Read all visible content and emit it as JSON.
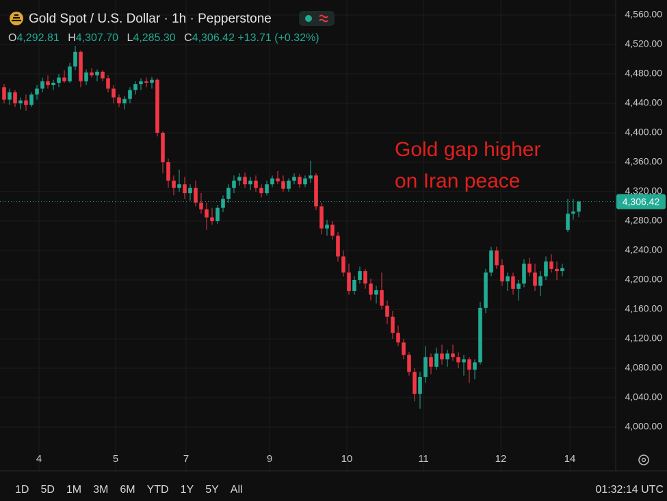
{
  "header": {
    "symbol": "Gold Spot / U.S. Dollar · 1h · Pepperstone",
    "ohlc_labels": [
      "O",
      "H",
      "L",
      "C"
    ],
    "ohlc_values": [
      "4,292.81",
      "4,307.70",
      "4,285.30",
      "4,306.42"
    ],
    "change": "+13.71 (+0.32%)"
  },
  "toolbar": {
    "ranges": [
      "1D",
      "5D",
      "1M",
      "3M",
      "6M",
      "YTD",
      "1Y",
      "5Y",
      "All"
    ],
    "time": "01:32:14 UTC"
  },
  "chart_data": {
    "type": "candlestick",
    "annotation": [
      "Gold gap higher",
      "on Iran peace"
    ],
    "up_color": "#22ab94",
    "down_color": "#f23645",
    "grid": true,
    "price_line": {
      "value": 4306.42,
      "label": "4,306.42"
    },
    "xlim": [
      -0.75,
      111.75
    ],
    "xticks": [
      {
        "value": 6.375,
        "label": "4"
      },
      {
        "value": 20.375,
        "label": "5"
      },
      {
        "value": 33.25,
        "label": "7"
      },
      {
        "value": 48.5,
        "label": "9"
      },
      {
        "value": 62.625,
        "label": "10"
      },
      {
        "value": 76.625,
        "label": "11"
      },
      {
        "value": 90.75,
        "label": "12"
      },
      {
        "value": 103.375,
        "label": "14"
      }
    ],
    "ylim": [
      3979.53,
      4580.47
    ],
    "yticks": [
      {
        "value": 4000,
        "label": "4,000.00"
      },
      {
        "value": 4040,
        "label": "4,040.00"
      },
      {
        "value": 4080,
        "label": "4,080.00"
      },
      {
        "value": 4120,
        "label": "4,120.00"
      },
      {
        "value": 4160,
        "label": "4,160.00"
      },
      {
        "value": 4200,
        "label": "4,200.00"
      },
      {
        "value": 4240,
        "label": "4,240.00"
      },
      {
        "value": 4280,
        "label": "4,280.00"
      },
      {
        "value": 4320,
        "label": "4,320.00"
      },
      {
        "value": 4360,
        "label": "4,360.00"
      },
      {
        "value": 4400,
        "label": "4,400.00"
      },
      {
        "value": 4440,
        "label": "4,440.00"
      },
      {
        "value": 4480,
        "label": "4,480.00"
      },
      {
        "value": 4520,
        "label": "4,520.00"
      },
      {
        "value": 4560,
        "label": "4,560.00"
      }
    ],
    "ohlc": [
      [
        4462,
        4466,
        4440,
        4445
      ],
      [
        4445,
        4460,
        4438,
        4455
      ],
      [
        4455,
        4458,
        4435,
        4440
      ],
      [
        4440,
        4448,
        4432,
        4444
      ],
      [
        4444,
        4452,
        4430,
        4438
      ],
      [
        4438,
        4455,
        4435,
        4452
      ],
      [
        4452,
        4465,
        4445,
        4460
      ],
      [
        4460,
        4475,
        4455,
        4470
      ],
      [
        4470,
        4478,
        4460,
        4465
      ],
      [
        4465,
        4472,
        4458,
        4468
      ],
      [
        4468,
        4480,
        4462,
        4475
      ],
      [
        4475,
        4485,
        4468,
        4470
      ],
      [
        4470,
        4495,
        4468,
        4490
      ],
      [
        4490,
        4518,
        4485,
        4510
      ],
      [
        4510,
        4512,
        4462,
        4470
      ],
      [
        4470,
        4486,
        4465,
        4482
      ],
      [
        4482,
        4488,
        4475,
        4478
      ],
      [
        4478,
        4486,
        4470,
        4483
      ],
      [
        4483,
        4485,
        4470,
        4474
      ],
      [
        4474,
        4478,
        4455,
        4460
      ],
      [
        4460,
        4465,
        4440,
        4448
      ],
      [
        4448,
        4452,
        4435,
        4440
      ],
      [
        4440,
        4450,
        4432,
        4446
      ],
      [
        4446,
        4462,
        4440,
        4458
      ],
      [
        4458,
        4470,
        4452,
        4466
      ],
      [
        4466,
        4474,
        4458,
        4470
      ],
      [
        4470,
        4475,
        4462,
        4468
      ],
      [
        4468,
        4476,
        4460,
        4472
      ],
      [
        4472,
        4474,
        4395,
        4400
      ],
      [
        4400,
        4402,
        4345,
        4360
      ],
      [
        4360,
        4365,
        4325,
        4335
      ],
      [
        4335,
        4342,
        4315,
        4325
      ],
      [
        4325,
        4350,
        4320,
        4330
      ],
      [
        4330,
        4340,
        4310,
        4318
      ],
      [
        4318,
        4330,
        4308,
        4325
      ],
      [
        4325,
        4335,
        4300,
        4305
      ],
      [
        4305,
        4318,
        4290,
        4296
      ],
      [
        4296,
        4305,
        4268,
        4285
      ],
      [
        4285,
        4298,
        4275,
        4280
      ],
      [
        4280,
        4302,
        4276,
        4298
      ],
      [
        4298,
        4315,
        4292,
        4310
      ],
      [
        4310,
        4330,
        4305,
        4325
      ],
      [
        4325,
        4342,
        4318,
        4335
      ],
      [
        4335,
        4345,
        4328,
        4340
      ],
      [
        4340,
        4346,
        4325,
        4330
      ],
      [
        4330,
        4340,
        4322,
        4335
      ],
      [
        4335,
        4342,
        4320,
        4325
      ],
      [
        4325,
        4330,
        4312,
        4318
      ],
      [
        4318,
        4335,
        4315,
        4330
      ],
      [
        4330,
        4342,
        4326,
        4338
      ],
      [
        4338,
        4348,
        4330,
        4334
      ],
      [
        4334,
        4342,
        4320,
        4324
      ],
      [
        4324,
        4338,
        4320,
        4335
      ],
      [
        4335,
        4345,
        4330,
        4340
      ],
      [
        4340,
        4344,
        4325,
        4330
      ],
      [
        4330,
        4342,
        4326,
        4338
      ],
      [
        4338,
        4362,
        4332,
        4342
      ],
      [
        4342,
        4345,
        4295,
        4300
      ],
      [
        4300,
        4305,
        4262,
        4270
      ],
      [
        4270,
        4282,
        4260,
        4275
      ],
      [
        4275,
        4280,
        4255,
        4260
      ],
      [
        4260,
        4265,
        4225,
        4232
      ],
      [
        4232,
        4240,
        4205,
        4210
      ],
      [
        4210,
        4222,
        4180,
        4185
      ],
      [
        4185,
        4205,
        4180,
        4200
      ],
      [
        4200,
        4218,
        4195,
        4212
      ],
      [
        4212,
        4215,
        4188,
        4195
      ],
      [
        4195,
        4202,
        4172,
        4180
      ],
      [
        4180,
        4192,
        4168,
        4186
      ],
      [
        4186,
        4210,
        4160,
        4165
      ],
      [
        4165,
        4172,
        4140,
        4150
      ],
      [
        4150,
        4158,
        4120,
        4128
      ],
      [
        4128,
        4138,
        4110,
        4115
      ],
      [
        4115,
        4120,
        4092,
        4098
      ],
      [
        4098,
        4102,
        4070,
        4075
      ],
      [
        4075,
        4080,
        4035,
        4045
      ],
      [
        4045,
        4075,
        4025,
        4068
      ],
      [
        4068,
        4110,
        4060,
        4095
      ],
      [
        4095,
        4100,
        4072,
        4082
      ],
      [
        4082,
        4108,
        4078,
        4100
      ],
      [
        4100,
        4112,
        4085,
        4092
      ],
      [
        4092,
        4105,
        4082,
        4100
      ],
      [
        4100,
        4112,
        4090,
        4095
      ],
      [
        4095,
        4102,
        4080,
        4088
      ],
      [
        4088,
        4098,
        4070,
        4092
      ],
      [
        4092,
        4095,
        4060,
        4078
      ],
      [
        4078,
        4092,
        4065,
        4088
      ],
      [
        4088,
        4170,
        4085,
        4162
      ],
      [
        4162,
        4215,
        4155,
        4210
      ],
      [
        4210,
        4245,
        4205,
        4240
      ],
      [
        4240,
        4245,
        4215,
        4220
      ],
      [
        4220,
        4228,
        4192,
        4198
      ],
      [
        4198,
        4210,
        4185,
        4205
      ],
      [
        4205,
        4210,
        4180,
        4188
      ],
      [
        4188,
        4200,
        4172,
        4195
      ],
      [
        4195,
        4228,
        4190,
        4222
      ],
      [
        4222,
        4230,
        4205,
        4210
      ],
      [
        4210,
        4222,
        4185,
        4192
      ],
      [
        4192,
        4212,
        4178,
        4205
      ],
      [
        4205,
        4232,
        4200,
        4225
      ],
      [
        4225,
        4235,
        4210,
        4215
      ],
      [
        4215,
        4225,
        4200,
        4212
      ],
      [
        4212,
        4222,
        4205,
        4216
      ],
      [
        4268,
        4310,
        4265,
        4290
      ],
      [
        4290,
        4310,
        4282,
        4293
      ],
      [
        4292.81,
        4307.7,
        4285.3,
        4306.42
      ]
    ]
  }
}
